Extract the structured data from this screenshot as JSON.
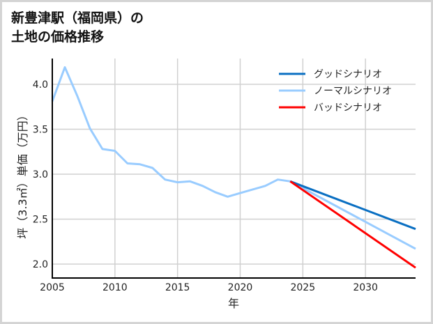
{
  "title_lines": [
    "新豊津駅（福岡県）の",
    "土地の価格推移"
  ],
  "chart_data": {
    "type": "line",
    "title": "新豊津駅（福岡県）の土地の価格推移",
    "xlabel": "年",
    "ylabel": "坪（3.3㎡）単価（万円）",
    "xlim": [
      2005,
      2034
    ],
    "ylim": [
      1.85,
      4.3
    ],
    "xticks": [
      2005,
      2010,
      2015,
      2020,
      2025,
      2030
    ],
    "yticks": [
      2.0,
      2.5,
      3.0,
      3.5,
      4.0
    ],
    "ytick_labels": [
      "2.0",
      "2.5",
      "3.0",
      "3.5",
      "4.0"
    ],
    "grid": true,
    "legend_position": "upper right",
    "series": [
      {
        "name": "グッドシナリオ",
        "color": "#0a6fc2",
        "x": [
          2024,
          2034
        ],
        "y": [
          2.92,
          2.39
        ]
      },
      {
        "name": "ノーマルシナリオ",
        "color": "#99ccff",
        "x": [
          2005,
          2006,
          2007,
          2008,
          2009,
          2010,
          2011,
          2012,
          2013,
          2014,
          2015,
          2016,
          2017,
          2018,
          2019,
          2020,
          2021,
          2022,
          2023,
          2024,
          2034
        ],
        "y": [
          3.81,
          4.19,
          3.87,
          3.51,
          3.28,
          3.26,
          3.12,
          3.11,
          3.07,
          2.94,
          2.91,
          2.92,
          2.87,
          2.8,
          2.75,
          2.79,
          2.83,
          2.87,
          2.94,
          2.92,
          2.17
        ]
      },
      {
        "name": "バッドシナリオ",
        "color": "#ff0000",
        "x": [
          2024,
          2034
        ],
        "y": [
          2.92,
          1.96
        ]
      }
    ]
  }
}
